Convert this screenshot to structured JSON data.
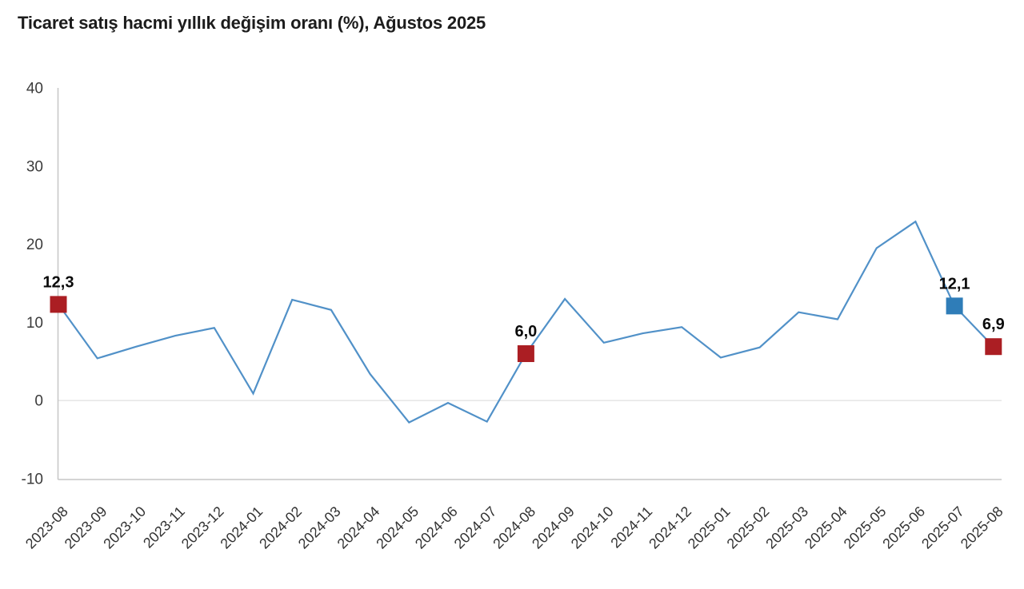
{
  "title": "Ticaret satış hacmi yıllık değişim oranı (%), Ağustos 2025",
  "chart_data": {
    "type": "line",
    "title": "Ticaret satış hacmi yıllık değişim oranı (%), Ağustos 2025",
    "x": [
      "2023-08",
      "2023-09",
      "2023-10",
      "2023-11",
      "2023-12",
      "2024-01",
      "2024-02",
      "2024-03",
      "2024-04",
      "2024-05",
      "2024-06",
      "2024-07",
      "2024-08",
      "2024-09",
      "2024-10",
      "2024-11",
      "2024-12",
      "2025-01",
      "2025-02",
      "2025-03",
      "2025-04",
      "2025-05",
      "2025-06",
      "2025-07",
      "2025-08"
    ],
    "series": [
      {
        "name": "Ticaret satış hacmi yıllık değişim oranı (%)",
        "values": [
          12.3,
          5.4,
          6.9,
          8.3,
          9.3,
          0.9,
          12.9,
          11.6,
          3.4,
          -2.8,
          -0.3,
          -2.7,
          6.0,
          13.0,
          7.4,
          8.6,
          9.4,
          5.5,
          6.8,
          11.3,
          10.4,
          19.5,
          22.9,
          12.1,
          6.9
        ]
      }
    ],
    "ylim": [
      -10,
      40
    ],
    "yticks": [
      40,
      30,
      20,
      10,
      0,
      -10
    ],
    "xlabel": "",
    "ylabel": "",
    "legend": "none",
    "grid": "single-horizontal-line-at-zero",
    "x_tick_rotation_deg": -45,
    "annotations": [
      {
        "x": "2023-08",
        "value": 12.3,
        "label": "12,3",
        "marker": "square",
        "marker_color": "#ab1e23"
      },
      {
        "x": "2024-08",
        "value": 6.0,
        "label": "6,0",
        "marker": "square",
        "marker_color": "#ab1e23"
      },
      {
        "x": "2025-07",
        "value": 12.1,
        "label": "12,1",
        "marker": "square",
        "marker_color": "#2f7db8"
      },
      {
        "x": "2025-08",
        "value": 6.9,
        "label": "6,9",
        "marker": "square",
        "marker_color": "#ab1e23"
      }
    ],
    "colors": {
      "line": "#5191c8",
      "axis_line": "#c6c6c6",
      "zero_gridline": "#e7e7e7",
      "tick_text": "#3b3b3b",
      "data_label_text": "#0a0a0a",
      "marker_red": "#ab1e23",
      "marker_blue": "#2f7db8",
      "background": "#ffffff",
      "title_text": "#1c1c1c"
    }
  }
}
